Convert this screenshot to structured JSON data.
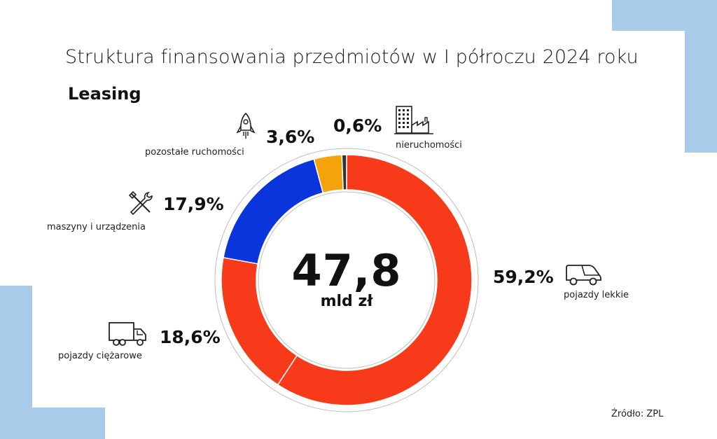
{
  "title": "Struktura finansowania przedmiotów w I półroczu 2024 roku",
  "subtitle": "Leasing",
  "center": {
    "value": "47,8",
    "unit": "mld zł"
  },
  "source": "Źródło: ZPL",
  "colors": {
    "pojazdy_lekkie": "#f73b1a",
    "pojazdy_ciezarowe": "#f73b1a",
    "maszyny": "#0a35dc",
    "pozostale": "#f5a30a",
    "nieruchomosci": "#333333",
    "decor": "#a9cbea"
  },
  "chart_data": {
    "type": "pie",
    "title": "Struktura finansowania przedmiotów w I półroczu 2024 roku",
    "subtitle": "Leasing",
    "total": "47,8 mld zł",
    "slices": [
      {
        "label": "pojazdy lekkie",
        "value": 59.2,
        "display": "59,2%",
        "color": "#f73b1a",
        "icon": "van-icon"
      },
      {
        "label": "pojazdy ciężarowe",
        "value": 18.6,
        "display": "18,6%",
        "color": "#f73b1a",
        "icon": "truck-icon"
      },
      {
        "label": "maszyny i urządzenia",
        "value": 17.9,
        "display": "17,9%",
        "color": "#0a35dc",
        "icon": "tools-icon"
      },
      {
        "label": "pozostałe ruchomości",
        "value": 3.6,
        "display": "3,6%",
        "color": "#f5a30a",
        "icon": "rocket-icon"
      },
      {
        "label": "nieruchomości",
        "value": 0.6,
        "display": "0,6%",
        "color": "#333333",
        "icon": "factory-icon"
      }
    ]
  }
}
